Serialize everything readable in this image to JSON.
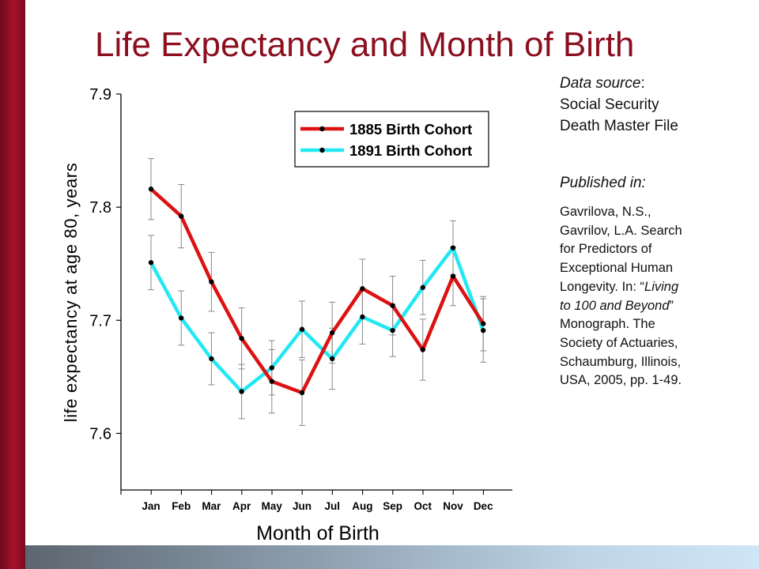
{
  "title": "Life Expectancy and Month of Birth",
  "sidebar": {
    "source_label": "Data source",
    "source_colon": ":",
    "source_line1": "Social Security",
    "source_line2": "Death Master File",
    "published_label": "Published in:",
    "citation": {
      "line1": "Gavrilova, N.S.,",
      "line2": "Gavrilov, L.A. Search",
      "line3": "for Predictors of",
      "line4": "Exceptional Human",
      "line5a": "Longevity. In: “",
      "line5b": "Living",
      "line6a": "to 100 and Beyond",
      "line6b": "”",
      "line7": "Monograph. The",
      "line8": "Society of Actuaries,",
      "line9": "Schaumburg, Illinois,",
      "line10": "USA, 2005, pp. 1-49."
    }
  },
  "colors": {
    "title": "#8b0f1f",
    "series_1885": "#dd1111",
    "series_1891": "#22e8f4",
    "marker": "#000000",
    "error_bar": "#888888",
    "left_bar": "#a8102c",
    "bottom_bar": "#8ea0b0"
  },
  "chart_data": {
    "type": "line",
    "title": "",
    "xlabel": "Month of Birth",
    "ylabel": "life expectancy at age 80, years",
    "categories": [
      "Jan",
      "Feb",
      "Mar",
      "Apr",
      "May",
      "Jun",
      "Jul",
      "Aug",
      "Sep",
      "Oct",
      "Nov",
      "Dec"
    ],
    "ylim": [
      7.55,
      7.9
    ],
    "yticks": [
      7.6,
      7.7,
      7.8,
      7.9
    ],
    "ytick_labels": [
      "7.6",
      "7.7",
      "7.8",
      "7.9"
    ],
    "grid": false,
    "legend": "top-right",
    "series": [
      {
        "name": "1885 Birth Cohort",
        "values": [
          7.816,
          7.792,
          7.734,
          7.684,
          7.646,
          7.636,
          7.689,
          7.728,
          7.713,
          7.674,
          7.739,
          7.697
        ],
        "error": [
          0.027,
          0.028,
          0.026,
          0.027,
          0.028,
          0.029,
          0.027,
          0.026,
          0.026,
          0.027,
          0.026,
          0.024
        ]
      },
      {
        "name": "1891 Birth Cohort",
        "values": [
          7.751,
          7.702,
          7.666,
          7.637,
          7.658,
          7.692,
          7.666,
          7.703,
          7.691,
          7.729,
          7.764,
          7.691
        ],
        "error": [
          0.024,
          0.024,
          0.023,
          0.024,
          0.024,
          0.025,
          0.027,
          0.024,
          0.023,
          0.024,
          0.024,
          0.028
        ]
      }
    ]
  }
}
